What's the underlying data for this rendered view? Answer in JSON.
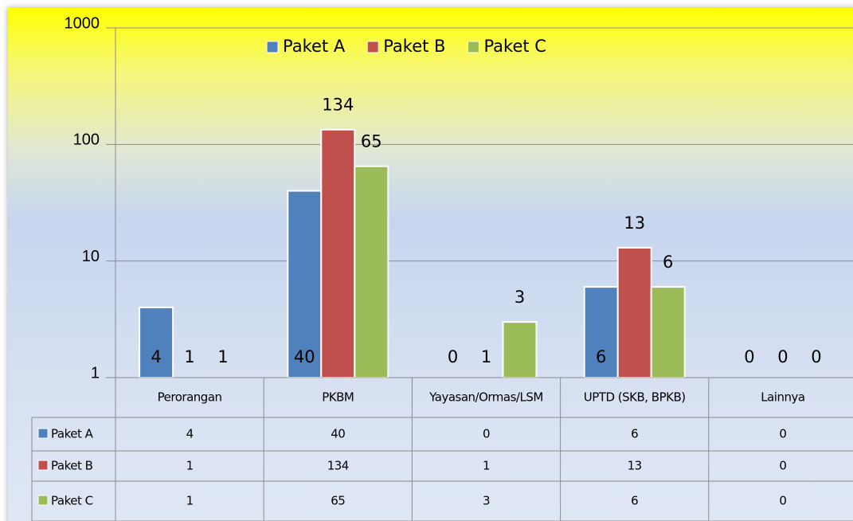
{
  "chart_data": {
    "type": "bar",
    "log_scale": true,
    "grid": true,
    "legend": "top",
    "categories": [
      "Perorangan",
      "PKBM",
      "Yayasan/Ormas/LSM",
      "UPTD (SKB, BPKB)",
      "Lainnya"
    ],
    "series": [
      {
        "name": "Paket A",
        "color": "#4f81bd",
        "values": [
          4,
          40,
          0,
          6,
          0
        ]
      },
      {
        "name": "Paket B",
        "color": "#c0504d",
        "values": [
          1,
          134,
          1,
          13,
          0
        ]
      },
      {
        "name": "Paket C",
        "color": "#9bbb59",
        "values": [
          1,
          65,
          3,
          6,
          0
        ]
      }
    ],
    "ylim": [
      1,
      1000
    ],
    "yticks": [
      1,
      10,
      100,
      1000
    ]
  }
}
